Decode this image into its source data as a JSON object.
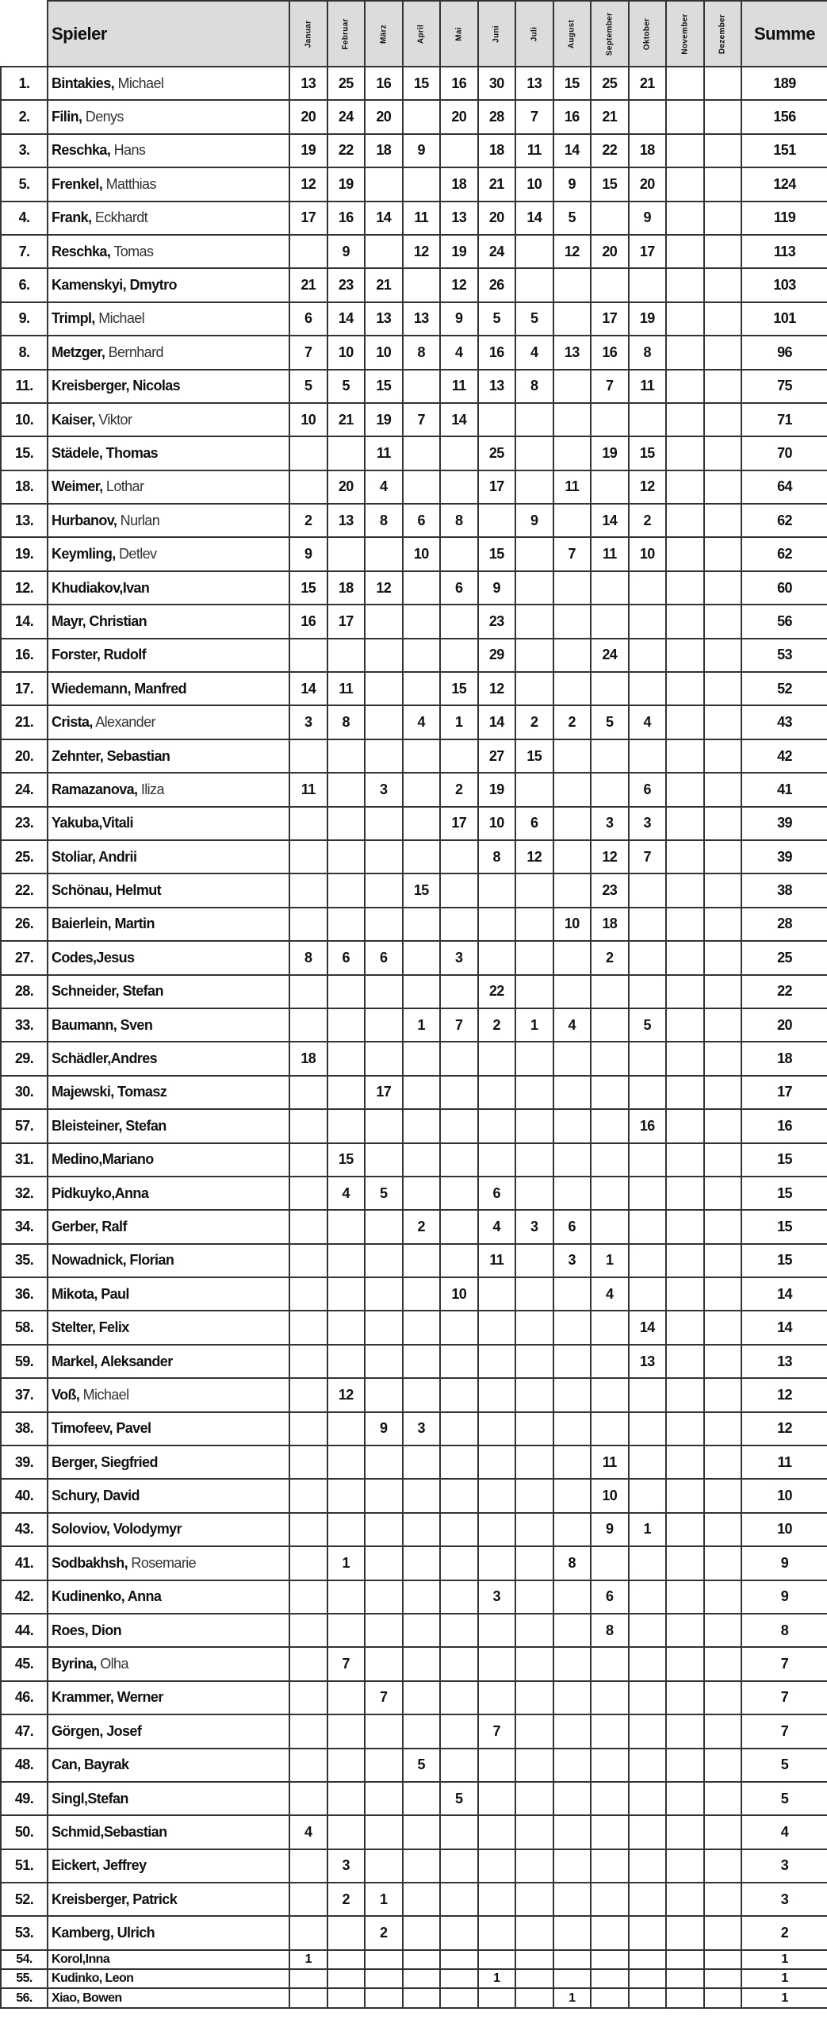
{
  "header": {
    "player_label": "Spieler",
    "months": [
      "Januar",
      "Februar",
      "März",
      "April",
      "Mai",
      "Juni",
      "Juli",
      "August",
      "September",
      "Oktober",
      "November",
      "Dezember"
    ],
    "sum_label": "Summe"
  },
  "colors": {
    "header_bg": "#dcdcdc",
    "border": "#333333"
  },
  "rows": [
    {
      "rank": "1.",
      "surname": "Bintakies,",
      "given": " Michael",
      "light": true,
      "m": [
        13,
        25,
        16,
        15,
        16,
        30,
        13,
        15,
        25,
        21,
        null,
        null
      ],
      "sum": 189
    },
    {
      "rank": "2.",
      "surname": "Filin,",
      "given": " Denys",
      "light": true,
      "m": [
        20,
        24,
        20,
        null,
        20,
        28,
        7,
        16,
        21,
        null,
        null,
        null
      ],
      "sum": 156
    },
    {
      "rank": "3.",
      "surname": "Reschka,",
      "given": " Hans",
      "light": true,
      "m": [
        19,
        22,
        18,
        9,
        null,
        18,
        11,
        14,
        22,
        18,
        null,
        null
      ],
      "sum": 151
    },
    {
      "rank": "5.",
      "surname": "Frenkel,",
      "given": " Matthias",
      "light": true,
      "m": [
        12,
        19,
        null,
        null,
        18,
        21,
        10,
        9,
        15,
        20,
        null,
        null
      ],
      "sum": 124
    },
    {
      "rank": "4.",
      "surname": "Frank,",
      "given": " Eckhardt",
      "light": true,
      "m": [
        17,
        16,
        14,
        11,
        13,
        20,
        14,
        5,
        null,
        9,
        null,
        null
      ],
      "sum": 119
    },
    {
      "rank": "7.",
      "surname": "Reschka,",
      "given": " Tomas",
      "light": true,
      "m": [
        null,
        9,
        null,
        12,
        19,
        24,
        null,
        12,
        20,
        17,
        null,
        null
      ],
      "sum": 113
    },
    {
      "rank": "6.",
      "surname": "Kamenskyi,",
      "given": " Dmytro",
      "light": false,
      "m": [
        21,
        23,
        21,
        null,
        12,
        26,
        null,
        null,
        null,
        null,
        null,
        null
      ],
      "sum": 103
    },
    {
      "rank": "9.",
      "surname": "Trimpl,",
      "given": " Michael",
      "light": true,
      "m": [
        6,
        14,
        13,
        13,
        9,
        5,
        5,
        null,
        17,
        19,
        null,
        null
      ],
      "sum": 101
    },
    {
      "rank": "8.",
      "surname": "Metzger,",
      "given": " Bernhard",
      "light": true,
      "m": [
        7,
        10,
        10,
        8,
        4,
        16,
        4,
        13,
        16,
        8,
        null,
        null
      ],
      "sum": 96
    },
    {
      "rank": "11.",
      "surname": "Kreisberger,",
      "given": " Nicolas",
      "light": false,
      "m": [
        5,
        5,
        15,
        null,
        11,
        13,
        8,
        null,
        7,
        11,
        null,
        null
      ],
      "sum": 75
    },
    {
      "rank": "10.",
      "surname": "Kaiser,",
      "given": " Viktor",
      "light": true,
      "m": [
        10,
        21,
        19,
        7,
        14,
        null,
        null,
        null,
        null,
        null,
        null,
        null
      ],
      "sum": 71
    },
    {
      "rank": "15.",
      "surname": "Städele,",
      "given": " Thomas",
      "light": false,
      "m": [
        null,
        null,
        11,
        null,
        null,
        25,
        null,
        null,
        19,
        15,
        null,
        null
      ],
      "sum": 70
    },
    {
      "rank": "18.",
      "surname": "Weimer,",
      "given": " Lothar",
      "light": true,
      "m": [
        null,
        20,
        4,
        null,
        null,
        17,
        null,
        11,
        null,
        12,
        null,
        null
      ],
      "sum": 64
    },
    {
      "rank": "13.",
      "surname": "Hurbanov,",
      "given": " Nurlan",
      "light": true,
      "m": [
        2,
        13,
        8,
        6,
        8,
        null,
        9,
        null,
        14,
        2,
        null,
        null
      ],
      "sum": 62
    },
    {
      "rank": "19.",
      "surname": "Keymling,",
      "given": " Detlev",
      "light": true,
      "m": [
        9,
        null,
        null,
        10,
        null,
        15,
        null,
        7,
        11,
        10,
        null,
        null
      ],
      "sum": 62
    },
    {
      "rank": "12.",
      "surname": "Khudiakov,",
      "given": "Ivan",
      "light": false,
      "m": [
        15,
        18,
        12,
        null,
        6,
        9,
        null,
        null,
        null,
        null,
        null,
        null
      ],
      "sum": 60
    },
    {
      "rank": "14.",
      "surname": "Mayr,",
      "given": " Christian",
      "light": false,
      "m": [
        16,
        17,
        null,
        null,
        null,
        23,
        null,
        null,
        null,
        null,
        null,
        null
      ],
      "sum": 56
    },
    {
      "rank": "16.",
      "surname": "Forster,",
      "given": " Rudolf",
      "light": false,
      "m": [
        null,
        null,
        null,
        null,
        null,
        29,
        null,
        null,
        24,
        null,
        null,
        null
      ],
      "sum": 53
    },
    {
      "rank": "17.",
      "surname": "Wiedemann,",
      "given": " Manfred",
      "light": false,
      "m": [
        14,
        11,
        null,
        null,
        15,
        12,
        null,
        null,
        null,
        null,
        null,
        null
      ],
      "sum": 52
    },
    {
      "rank": "21.",
      "surname": "Crista,",
      "given": " Alexander",
      "light": true,
      "m": [
        3,
        8,
        null,
        4,
        1,
        14,
        2,
        2,
        5,
        4,
        null,
        null
      ],
      "sum": 43
    },
    {
      "rank": "20.",
      "surname": "Zehnter,",
      "given": " Sebastian",
      "light": false,
      "m": [
        null,
        null,
        null,
        null,
        null,
        27,
        15,
        null,
        null,
        null,
        null,
        null
      ],
      "sum": 42
    },
    {
      "rank": "24.",
      "surname": "Ramazanova,",
      "given": " Iliza",
      "light": true,
      "m": [
        11,
        null,
        3,
        null,
        2,
        19,
        null,
        null,
        null,
        6,
        null,
        null
      ],
      "sum": 41
    },
    {
      "rank": "23.",
      "surname": "Yakuba,",
      "given": "Vitali",
      "light": false,
      "m": [
        null,
        null,
        null,
        null,
        17,
        10,
        6,
        null,
        3,
        3,
        null,
        null
      ],
      "sum": 39
    },
    {
      "rank": "25.",
      "surname": "Stoliar,",
      "given": " Andrii",
      "light": false,
      "m": [
        null,
        null,
        null,
        null,
        null,
        8,
        12,
        null,
        12,
        7,
        null,
        null
      ],
      "sum": 39
    },
    {
      "rank": "22.",
      "surname": "Schönau,",
      "given": " Helmut",
      "light": false,
      "m": [
        null,
        null,
        null,
        15,
        null,
        null,
        null,
        null,
        23,
        null,
        null,
        null
      ],
      "sum": 38
    },
    {
      "rank": "26.",
      "surname": "Baierlein,",
      "given": " Martin",
      "light": false,
      "m": [
        null,
        null,
        null,
        null,
        null,
        null,
        null,
        10,
        18,
        null,
        null,
        null
      ],
      "sum": 28
    },
    {
      "rank": "27.",
      "surname": "Codes,",
      "given": "Jesus",
      "light": false,
      "m": [
        8,
        6,
        6,
        null,
        3,
        null,
        null,
        null,
        2,
        null,
        null,
        null
      ],
      "sum": 25
    },
    {
      "rank": "28.",
      "surname": "Schneider,",
      "given": " Stefan",
      "light": false,
      "m": [
        null,
        null,
        null,
        null,
        null,
        22,
        null,
        null,
        null,
        null,
        null,
        null
      ],
      "sum": 22
    },
    {
      "rank": "33.",
      "surname": "Baumann,",
      "given": " Sven",
      "light": false,
      "m": [
        null,
        null,
        null,
        1,
        7,
        2,
        1,
        4,
        null,
        5,
        null,
        null
      ],
      "sum": 20
    },
    {
      "rank": "29.",
      "surname": "Schädler,",
      "given": "Andres",
      "light": false,
      "m": [
        18,
        null,
        null,
        null,
        null,
        null,
        null,
        null,
        null,
        null,
        null,
        null
      ],
      "sum": 18
    },
    {
      "rank": "30.",
      "surname": "Majewski,",
      "given": " Tomasz",
      "light": false,
      "m": [
        null,
        null,
        17,
        null,
        null,
        null,
        null,
        null,
        null,
        null,
        null,
        null
      ],
      "sum": 17
    },
    {
      "rank": "57.",
      "surname": "Bleisteiner,",
      "given": " Stefan",
      "light": false,
      "m": [
        null,
        null,
        null,
        null,
        null,
        null,
        null,
        null,
        null,
        16,
        null,
        null
      ],
      "sum": 16
    },
    {
      "rank": "31.",
      "surname": "Medino,",
      "given": "Mariano",
      "light": false,
      "m": [
        null,
        15,
        null,
        null,
        null,
        null,
        null,
        null,
        null,
        null,
        null,
        null
      ],
      "sum": 15
    },
    {
      "rank": "32.",
      "surname": "Pidkuyko,",
      "given": "Anna",
      "light": false,
      "m": [
        null,
        4,
        5,
        null,
        null,
        6,
        null,
        null,
        null,
        null,
        null,
        null
      ],
      "sum": 15
    },
    {
      "rank": "34.",
      "surname": "Gerber,",
      "given": " Ralf",
      "light": false,
      "m": [
        null,
        null,
        null,
        2,
        null,
        4,
        3,
        6,
        null,
        null,
        null,
        null
      ],
      "sum": 15
    },
    {
      "rank": "35.",
      "surname": "Nowadnick,",
      "given": " Florian",
      "light": false,
      "m": [
        null,
        null,
        null,
        null,
        null,
        11,
        null,
        3,
        1,
        null,
        null,
        null
      ],
      "sum": 15
    },
    {
      "rank": "36.",
      "surname": "Mikota,",
      "given": " Paul",
      "light": false,
      "m": [
        null,
        null,
        null,
        null,
        10,
        null,
        null,
        null,
        4,
        null,
        null,
        null
      ],
      "sum": 14
    },
    {
      "rank": "58.",
      "surname": "Stelter,",
      "given": " Felix",
      "light": false,
      "m": [
        null,
        null,
        null,
        null,
        null,
        null,
        null,
        null,
        null,
        14,
        null,
        null
      ],
      "sum": 14
    },
    {
      "rank": "59.",
      "surname": "Markel,",
      "given": " Aleksander",
      "light": false,
      "m": [
        null,
        null,
        null,
        null,
        null,
        null,
        null,
        null,
        null,
        13,
        null,
        null
      ],
      "sum": 13
    },
    {
      "rank": "37.",
      "surname": "Voß,",
      "given": " Michael",
      "light": true,
      "m": [
        null,
        12,
        null,
        null,
        null,
        null,
        null,
        null,
        null,
        null,
        null,
        null
      ],
      "sum": 12
    },
    {
      "rank": "38.",
      "surname": "Timofeev,",
      "given": " Pavel",
      "light": false,
      "m": [
        null,
        null,
        9,
        3,
        null,
        null,
        null,
        null,
        null,
        null,
        null,
        null
      ],
      "sum": 12
    },
    {
      "rank": "39.",
      "surname": "Berger,",
      "given": " Siegfried",
      "light": false,
      "m": [
        null,
        null,
        null,
        null,
        null,
        null,
        null,
        null,
        11,
        null,
        null,
        null
      ],
      "sum": 11
    },
    {
      "rank": "40.",
      "surname": "Schury,",
      "given": " David",
      "light": false,
      "m": [
        null,
        null,
        null,
        null,
        null,
        null,
        null,
        null,
        10,
        null,
        null,
        null
      ],
      "sum": 10
    },
    {
      "rank": "43.",
      "surname": "Soloviov,",
      "given": " Volodymyr",
      "light": false,
      "m": [
        null,
        null,
        null,
        null,
        null,
        null,
        null,
        null,
        9,
        1,
        null,
        null
      ],
      "sum": 10
    },
    {
      "rank": "41.",
      "surname": "Sodbakhsh,",
      "given": " Rosemarie",
      "light": true,
      "m": [
        null,
        1,
        null,
        null,
        null,
        null,
        null,
        8,
        null,
        null,
        null,
        null
      ],
      "sum": 9
    },
    {
      "rank": "42.",
      "surname": "Kudinenko,",
      "given": " Anna",
      "light": false,
      "m": [
        null,
        null,
        null,
        null,
        null,
        3,
        null,
        null,
        6,
        null,
        null,
        null
      ],
      "sum": 9
    },
    {
      "rank": "44.",
      "surname": "Roes,",
      "given": " Dion",
      "light": false,
      "m": [
        null,
        null,
        null,
        null,
        null,
        null,
        null,
        null,
        8,
        null,
        null,
        null
      ],
      "sum": 8
    },
    {
      "rank": "45.",
      "surname": "Byrina,",
      "given": " Olha",
      "light": true,
      "m": [
        null,
        7,
        null,
        null,
        null,
        null,
        null,
        null,
        null,
        null,
        null,
        null
      ],
      "sum": 7
    },
    {
      "rank": "46.",
      "surname": "Krammer,",
      "given": " Werner",
      "light": false,
      "m": [
        null,
        null,
        7,
        null,
        null,
        null,
        null,
        null,
        null,
        null,
        null,
        null
      ],
      "sum": 7
    },
    {
      "rank": "47.",
      "surname": "Görgen,",
      "given": " Josef",
      "light": false,
      "m": [
        null,
        null,
        null,
        null,
        null,
        7,
        null,
        null,
        null,
        null,
        null,
        null
      ],
      "sum": 7
    },
    {
      "rank": "48.",
      "surname": "Can,",
      "given": " Bayrak",
      "light": false,
      "m": [
        null,
        null,
        null,
        5,
        null,
        null,
        null,
        null,
        null,
        null,
        null,
        null
      ],
      "sum": 5
    },
    {
      "rank": "49.",
      "surname": "Singl,",
      "given": "Stefan",
      "light": false,
      "m": [
        null,
        null,
        null,
        null,
        5,
        null,
        null,
        null,
        null,
        null,
        null,
        null
      ],
      "sum": 5
    },
    {
      "rank": "50.",
      "surname": "Schmid,",
      "given": "Sebastian",
      "light": false,
      "m": [
        4,
        null,
        null,
        null,
        null,
        null,
        null,
        null,
        null,
        null,
        null,
        null
      ],
      "sum": 4
    },
    {
      "rank": "51.",
      "surname": "Eickert,",
      "given": " Jeffrey",
      "light": false,
      "m": [
        null,
        3,
        null,
        null,
        null,
        null,
        null,
        null,
        null,
        null,
        null,
        null
      ],
      "sum": 3
    },
    {
      "rank": "52.",
      "surname": "Kreisberger,",
      "given": " Patrick",
      "light": false,
      "m": [
        null,
        2,
        1,
        null,
        null,
        null,
        null,
        null,
        null,
        null,
        null,
        null
      ],
      "sum": 3
    },
    {
      "rank": "53.",
      "surname": "Kamberg,",
      "given": " Ulrich",
      "light": false,
      "m": [
        null,
        null,
        2,
        null,
        null,
        null,
        null,
        null,
        null,
        null,
        null,
        null
      ],
      "sum": 2
    },
    {
      "rank": "54.",
      "surname": "Korol,",
      "given": "Inna",
      "light": false,
      "small": true,
      "m": [
        1,
        null,
        null,
        null,
        null,
        null,
        null,
        null,
        null,
        null,
        null,
        null
      ],
      "sum": 1
    },
    {
      "rank": "55.",
      "surname": "Kudinko,",
      "given": " Leon",
      "light": false,
      "small": true,
      "m": [
        null,
        null,
        null,
        null,
        null,
        1,
        null,
        null,
        null,
        null,
        null,
        null
      ],
      "sum": 1
    },
    {
      "rank": "56.",
      "surname": "Xiao,",
      "given": " Bowen",
      "light": false,
      "small": true,
      "m": [
        null,
        null,
        null,
        null,
        null,
        null,
        null,
        1,
        null,
        null,
        null,
        null
      ],
      "sum": 1
    }
  ]
}
